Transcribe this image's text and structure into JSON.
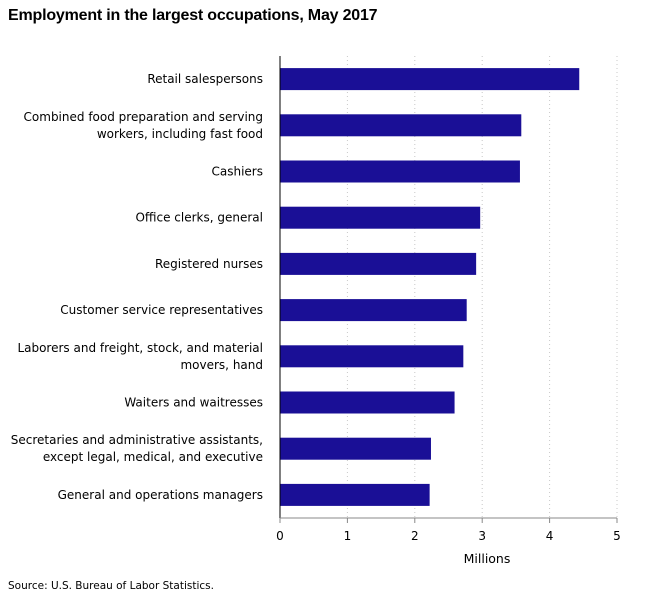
{
  "chart_data": {
    "type": "bar",
    "orientation": "horizontal",
    "title": "Employment in the largest occupations, May 2017",
    "categories": [
      [
        "Retail salespersons"
      ],
      [
        "Combined food preparation and serving",
        "workers, including fast food"
      ],
      [
        "Cashiers"
      ],
      [
        "Office clerks, general"
      ],
      [
        "Registered nurses"
      ],
      [
        "Customer service representatives"
      ],
      [
        "Laborers and freight, stock, and material",
        "movers, hand"
      ],
      [
        "Waiters and waitresses"
      ],
      [
        "Secretaries and administrative assistants,",
        "except legal, medical, and executive"
      ],
      [
        "General and operations managers"
      ]
    ],
    "values": [
      4.44,
      3.58,
      3.56,
      2.97,
      2.91,
      2.77,
      2.72,
      2.59,
      2.24,
      2.22
    ],
    "xlabel": "Millions",
    "xlim": [
      0,
      5
    ],
    "xticks": [
      "0",
      "1",
      "2",
      "3",
      "4",
      "5"
    ],
    "grid": "vertical dotted",
    "bar_color": "#1a0f96",
    "source": "Source: U.S. Bureau of Labor Statistics."
  }
}
